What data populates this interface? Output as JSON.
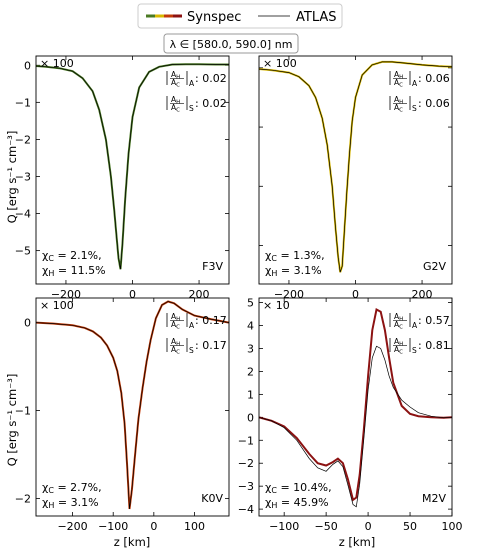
{
  "legend": {
    "synspec_label": "Synspec",
    "atlas_label": "ATLAS"
  },
  "wavelength_box": "λ ∈ [580.0, 590.0] nm",
  "ylabel": "Q [erg s⁻¹ cm⁻³]",
  "xlabel": "z [km]",
  "ratio_A_sub": "A",
  "ratio_S_sub": "S",
  "colors": {
    "F3V": "#4a7a23",
    "G2V": "#d8b800",
    "K0V": "#c23a08",
    "M2V": "#8c1212",
    "atlas": "#000000"
  },
  "chart_data": [
    {
      "type": "line",
      "star": "F3V",
      "multiplier": "× 100",
      "xlim": [
        -290,
        290
      ],
      "ylim": [
        -5.9,
        0.25
      ],
      "xticks": [
        -200,
        0,
        200
      ],
      "xticklabels": [
        "−200",
        "0",
        "200"
      ],
      "yticks": [
        0,
        -1,
        -2,
        -3,
        -4,
        -5
      ],
      "yticklabels": [
        "0",
        "−1",
        "−2",
        "−3",
        "−4",
        "−5"
      ],
      "ratio_A": ": 0.02",
      "ratio_S": ": 0.02",
      "chi_C": "χ_C = 2.1%,",
      "chi_H": "χ_H = 11.5%",
      "x": [
        -290,
        -260,
        -220,
        -180,
        -150,
        -120,
        -100,
        -80,
        -65,
        -55,
        -48,
        -42,
        -36,
        -30,
        -22,
        -12,
        0,
        20,
        50,
        80,
        120,
        160,
        200,
        250,
        290
      ],
      "series": [
        {
          "name": "Synspec",
          "values": [
            -0.02,
            -0.04,
            -0.08,
            -0.16,
            -0.35,
            -0.7,
            -1.2,
            -2.0,
            -3.0,
            -3.9,
            -4.6,
            -5.2,
            -5.5,
            -4.8,
            -3.6,
            -2.4,
            -1.4,
            -0.6,
            -0.18,
            -0.04,
            0.02,
            0.03,
            0.03,
            0.02,
            0.02
          ]
        },
        {
          "name": "ATLAS",
          "values": [
            -0.02,
            -0.04,
            -0.08,
            -0.16,
            -0.35,
            -0.7,
            -1.2,
            -2.0,
            -3.0,
            -3.9,
            -4.6,
            -5.2,
            -5.5,
            -4.8,
            -3.6,
            -2.4,
            -1.4,
            -0.6,
            -0.18,
            -0.04,
            0.02,
            0.03,
            0.03,
            0.02,
            0.02
          ]
        }
      ]
    },
    {
      "type": "line",
      "star": "G2V",
      "multiplier": "× 100",
      "xlim": [
        -290,
        290
      ],
      "ylim": [
        -3.65,
        0.2
      ],
      "xticks": [
        -200,
        0,
        200
      ],
      "xticklabels": [
        "−200",
        "0",
        "200"
      ],
      "yticks": [
        0,
        -1,
        -2,
        -3
      ],
      "yticklabels": [
        "",
        "",
        "",
        ""
      ],
      "ratio_A": ": 0.06",
      "ratio_S": ": 0.06",
      "chi_C": "χ_C = 1.3%,",
      "chi_H": "χ_H = 3.1%",
      "x": [
        -290,
        -250,
        -200,
        -170,
        -140,
        -120,
        -100,
        -85,
        -70,
        -60,
        -52,
        -46,
        -40,
        -34,
        -26,
        -18,
        -10,
        0,
        20,
        50,
        80,
        110,
        150,
        200,
        250,
        290
      ],
      "series": [
        {
          "name": "Synspec",
          "values": [
            -0.02,
            -0.04,
            -0.08,
            -0.15,
            -0.3,
            -0.5,
            -0.85,
            -1.3,
            -2.0,
            -2.7,
            -3.2,
            -3.45,
            -3.35,
            -2.8,
            -2.1,
            -1.45,
            -0.9,
            -0.5,
            -0.12,
            0.05,
            0.1,
            0.1,
            0.08,
            0.05,
            0.03,
            0.02
          ]
        },
        {
          "name": "ATLAS",
          "values": [
            -0.02,
            -0.04,
            -0.08,
            -0.15,
            -0.3,
            -0.5,
            -0.85,
            -1.3,
            -2.0,
            -2.7,
            -3.2,
            -3.45,
            -3.35,
            -2.8,
            -2.1,
            -1.45,
            -0.9,
            -0.5,
            -0.12,
            0.05,
            0.1,
            0.1,
            0.08,
            0.05,
            0.03,
            0.02
          ]
        }
      ]
    },
    {
      "type": "line",
      "star": "K0V",
      "multiplier": "× 100",
      "xlim": [
        -290,
        185
      ],
      "ylim": [
        -2.2,
        0.28
      ],
      "xticks": [
        -200,
        -100,
        0,
        100
      ],
      "xticklabels": [
        "−200",
        "−100",
        "0",
        "100"
      ],
      "yticks": [
        0,
        -1,
        -2
      ],
      "yticklabels": [
        "0",
        "−1",
        "−2"
      ],
      "ratio_A": ": 0.17",
      "ratio_S": ": 0.17",
      "chi_C": "χ_C = 2.7%,",
      "chi_H": "χ_H = 3.1%",
      "x": [
        -290,
        -250,
        -200,
        -170,
        -150,
        -130,
        -115,
        -100,
        -90,
        -80,
        -72,
        -66,
        -60,
        -54,
        -46,
        -38,
        -28,
        -18,
        -8,
        5,
        20,
        35,
        50,
        70,
        100,
        140,
        185
      ],
      "series": [
        {
          "name": "Synspec",
          "values": [
            0,
            -0.01,
            -0.03,
            -0.06,
            -0.1,
            -0.17,
            -0.26,
            -0.4,
            -0.55,
            -0.8,
            -1.15,
            -1.6,
            -2.12,
            -1.9,
            -1.5,
            -1.1,
            -0.75,
            -0.45,
            -0.2,
            0.05,
            0.2,
            0.24,
            0.22,
            0.15,
            0.08,
            0.04,
            0.0
          ]
        },
        {
          "name": "ATLAS",
          "values": [
            0,
            -0.01,
            -0.03,
            -0.06,
            -0.1,
            -0.17,
            -0.26,
            -0.4,
            -0.55,
            -0.8,
            -1.15,
            -1.6,
            -2.12,
            -1.9,
            -1.5,
            -1.1,
            -0.75,
            -0.45,
            -0.2,
            0.05,
            0.2,
            0.24,
            0.22,
            0.15,
            0.08,
            0.04,
            0.0
          ]
        }
      ]
    },
    {
      "type": "line",
      "star": "M2V",
      "multiplier": "× 10",
      "xlim": [
        -130,
        100
      ],
      "ylim": [
        -4.3,
        5.2
      ],
      "xticks": [
        -100,
        -50,
        0,
        50,
        100
      ],
      "xticklabels": [
        "−100",
        "−50",
        "0",
        "50",
        "100"
      ],
      "yticks": [
        5,
        4,
        3,
        2,
        1,
        0,
        -1,
        -2,
        -3,
        -4
      ],
      "yticklabels": [
        "5",
        "4",
        "3",
        "2",
        "1",
        "0",
        "−1",
        "−2",
        "−3",
        "−4"
      ],
      "ratio_A": ": 0.57",
      "ratio_S": ": 0.81",
      "chi_C": "χ_C = 10.4%,",
      "chi_H": "χ_H = 45.9%",
      "x": [
        -130,
        -115,
        -100,
        -85,
        -70,
        -60,
        -50,
        -42,
        -36,
        -30,
        -24,
        -18,
        -14,
        -10,
        -5,
        0,
        5,
        10,
        15,
        20,
        25,
        30,
        40,
        50,
        60,
        75,
        90,
        100
      ],
      "series": [
        {
          "name": "Synspec",
          "values": [
            0.0,
            -0.15,
            -0.4,
            -0.9,
            -1.6,
            -2.0,
            -2.1,
            -1.95,
            -1.8,
            -2.0,
            -2.7,
            -3.6,
            -3.5,
            -2.5,
            -0.5,
            1.8,
            3.8,
            4.7,
            4.6,
            3.8,
            2.6,
            1.5,
            0.5,
            0.15,
            0.05,
            0.0,
            -0.02,
            0.0
          ]
        },
        {
          "name": "ATLAS",
          "values": [
            0.0,
            -0.15,
            -0.45,
            -1.0,
            -1.8,
            -2.2,
            -2.35,
            -2.05,
            -1.9,
            -2.15,
            -2.95,
            -3.8,
            -3.9,
            -2.9,
            -0.9,
            1.2,
            2.6,
            3.1,
            3.0,
            2.5,
            1.8,
            1.3,
            0.75,
            0.45,
            0.2,
            0.05,
            -0.02,
            0.0
          ]
        }
      ]
    }
  ]
}
